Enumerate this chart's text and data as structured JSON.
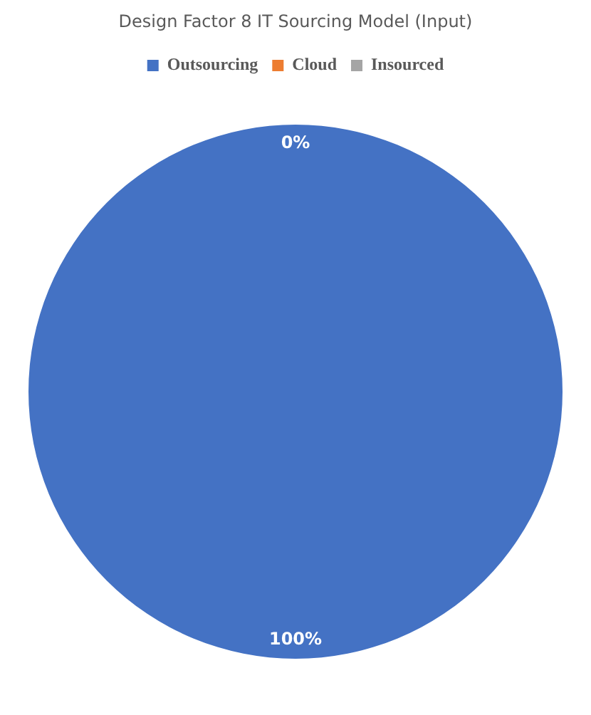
{
  "chart_data": {
    "type": "pie",
    "title": "Design Factor 8 IT Sourcing Model (Input)",
    "categories": [
      "Outsourcing",
      "Cloud",
      "Insourced"
    ],
    "values": [
      100,
      0,
      0
    ],
    "colors": [
      "#4472c4",
      "#ed7d31",
      "#a5a5a5"
    ],
    "value_labels": [
      "100%",
      "0%",
      null
    ],
    "legend": "top"
  }
}
